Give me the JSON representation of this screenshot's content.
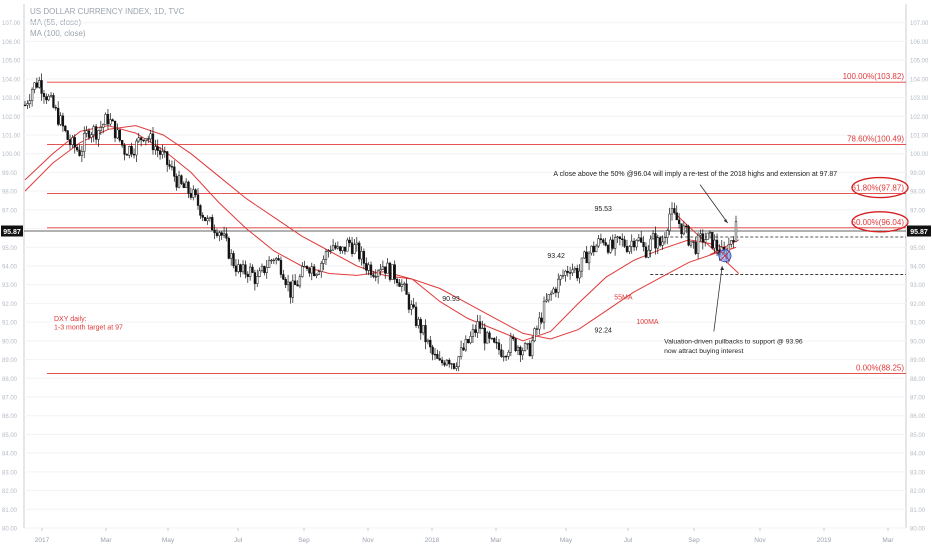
{
  "legend": {
    "symbol": "US DOLLAR CURRENCY INDEX, 1D, TVC",
    "ma1": "MA (55, close)",
    "ma2": "MA (100, close)"
  },
  "chart_data": {
    "type": "line",
    "subtype": "candlestick",
    "ylim": [
      80,
      108
    ],
    "y_ticks": [
      "107.00",
      "106.00",
      "105.00",
      "104.00",
      "103.00",
      "102.00",
      "101.00",
      "100.00",
      "99.00",
      "98.00",
      "97.00",
      "96.00",
      "95.00",
      "94.00",
      "93.00",
      "92.00",
      "91.00",
      "90.00",
      "89.00",
      "88.00",
      "87.00",
      "86.00",
      "85.00",
      "84.00",
      "83.00",
      "82.00",
      "81.00",
      "80.00"
    ],
    "x_ticks": [
      "2017",
      "Mar",
      "May",
      "Jul",
      "Sep",
      "Nov",
      "2018",
      "Mar",
      "May",
      "Jul",
      "Sep",
      "Nov",
      "2019",
      "Mar"
    ],
    "current_price": "95.87",
    "accent_color": "#e03a3a",
    "fib_levels": [
      {
        "label": "100.00%(103.82)",
        "value": 103.82,
        "circled": false
      },
      {
        "label": "78.60%(100.49)",
        "value": 100.49,
        "circled": false
      },
      {
        "label": "61.80%(97.87)",
        "value": 97.87,
        "circled": true
      },
      {
        "label": "50.00%(96.04)",
        "value": 96.04,
        "circled": true
      },
      {
        "label": "0.00%(88.25)",
        "value": 88.25,
        "circled": false
      }
    ],
    "support_dashed": [
      95.55,
      93.55
    ],
    "price_labels": [
      {
        "text": "90.93",
        "value": 90.93
      },
      {
        "text": "93.42",
        "value": 93.42
      },
      {
        "text": "95.53",
        "value": 95.53
      },
      {
        "text": "92.24",
        "value": 92.24
      }
    ],
    "ma_labels": {
      "ma55": "55MA",
      "ma100": "100MA"
    },
    "annotations": {
      "note_top": "A close above the 50% @96.04 will imply a re-test of the 2018 highs and extension at 97.87",
      "note_bottom_line1": "Valuation-driven pullbacks to support @ 93.96",
      "note_bottom_line2": "now attract buying interest",
      "dxy_line1": "DXY daily:",
      "dxy_line2": "1-3 month target at 97"
    },
    "price_path": [
      [
        0,
        102.6
      ],
      [
        0.5,
        103.5
      ],
      [
        1,
        103.9
      ],
      [
        1.8,
        102.8
      ],
      [
        2.5,
        101.8
      ],
      [
        3.2,
        100.6
      ],
      [
        4,
        100.1
      ],
      [
        4.6,
        101.3
      ],
      [
        5.2,
        101.2
      ],
      [
        6,
        101.9
      ],
      [
        6.6,
        101.1
      ],
      [
        7.2,
        100.2
      ],
      [
        8,
        100.4
      ],
      [
        8.6,
        101.1
      ],
      [
        9.2,
        100.6
      ],
      [
        10,
        99.8
      ],
      [
        10.6,
        99.1
      ],
      [
        11.2,
        98.3
      ],
      [
        12,
        97.9
      ],
      [
        12.6,
        97.2
      ],
      [
        13.2,
        96.3
      ],
      [
        14,
        96.0
      ],
      [
        14.5,
        95.2
      ],
      [
        15,
        94.3
      ],
      [
        15.6,
        93.6
      ],
      [
        16.2,
        93.8
      ],
      [
        16.8,
        93.2
      ],
      [
        17.4,
        94.0
      ],
      [
        18,
        94.5
      ],
      [
        18.6,
        93.9
      ],
      [
        19.2,
        92.6
      ],
      [
        19.8,
        93.2
      ],
      [
        20.4,
        94.1
      ],
      [
        21,
        93.8
      ],
      [
        21.6,
        94.4
      ],
      [
        22.2,
        95.2
      ],
      [
        22.8,
        94.6
      ],
      [
        23.4,
        95.3
      ],
      [
        24,
        94.8
      ],
      [
        24.6,
        94.1
      ],
      [
        25.2,
        93.8
      ],
      [
        25.8,
        94.1
      ],
      [
        26.4,
        93.7
      ],
      [
        27,
        93.4
      ],
      [
        27.6,
        92.3
      ],
      [
        28.2,
        91.2
      ],
      [
        28.8,
        90.4
      ],
      [
        29.4,
        89.3
      ],
      [
        30,
        88.7
      ],
      [
        30.5,
        89.2
      ],
      [
        31,
        88.8
      ],
      [
        31.6,
        89.4
      ],
      [
        32.2,
        90.1
      ],
      [
        32.8,
        90.9
      ],
      [
        33.4,
        90.0
      ],
      [
        34,
        89.6
      ],
      [
        34.6,
        89.5
      ],
      [
        35.2,
        89.9
      ],
      [
        35.8,
        89.7
      ],
      [
        36.4,
        89.4
      ],
      [
        37,
        90.6
      ],
      [
        37.6,
        91.9
      ],
      [
        38.2,
        92.7
      ],
      [
        38.8,
        93.4
      ],
      [
        39.4,
        94.0
      ],
      [
        40,
        93.6
      ],
      [
        40.6,
        94.6
      ],
      [
        41.2,
        95.0
      ],
      [
        41.8,
        95.5
      ],
      [
        42.4,
        94.9
      ],
      [
        43,
        95.3
      ],
      [
        43.6,
        95.1
      ],
      [
        44.2,
        95.6
      ],
      [
        44.8,
        94.8
      ],
      [
        45.4,
        95.4
      ],
      [
        46,
        95.1
      ],
      [
        46.6,
        96.8
      ],
      [
        47.2,
        96.4
      ],
      [
        47.8,
        95.7
      ],
      [
        48.4,
        95.0
      ],
      [
        49,
        95.5
      ],
      [
        49.6,
        95.4
      ],
      [
        50.2,
        94.8
      ],
      [
        50.6,
        94.4
      ],
      [
        51,
        95.4
      ],
      [
        51.4,
        96.0
      ]
    ],
    "ma55_path": [
      [
        0,
        98.6
      ],
      [
        2,
        100.0
      ],
      [
        4,
        101.2
      ],
      [
        6,
        101.5
      ],
      [
        8,
        101.1
      ],
      [
        10,
        100.2
      ],
      [
        12,
        99.0
      ],
      [
        14,
        97.4
      ],
      [
        16,
        96.0
      ],
      [
        18,
        94.8
      ],
      [
        20,
        94.0
      ],
      [
        22,
        93.6
      ],
      [
        24,
        93.5
      ],
      [
        26,
        93.7
      ],
      [
        28,
        93.3
      ],
      [
        30,
        92.1
      ],
      [
        32,
        91.2
      ],
      [
        34,
        90.6
      ],
      [
        36,
        90.0
      ],
      [
        38,
        90.5
      ],
      [
        40,
        92.0
      ],
      [
        42,
        93.4
      ],
      [
        44,
        94.3
      ],
      [
        46,
        94.9
      ],
      [
        48,
        95.4
      ],
      [
        49.5,
        95.2
      ],
      [
        51,
        94.9
      ],
      [
        51.4,
        95.0
      ]
    ],
    "ma100_path": [
      [
        0,
        98.0
      ],
      [
        2,
        99.5
      ],
      [
        4,
        100.6
      ],
      [
        6,
        101.3
      ],
      [
        8,
        101.5
      ],
      [
        10,
        101.0
      ],
      [
        12,
        100.0
      ],
      [
        14,
        98.8
      ],
      [
        16,
        97.6
      ],
      [
        18,
        96.6
      ],
      [
        20,
        95.6
      ],
      [
        22,
        94.8
      ],
      [
        24,
        94.0
      ],
      [
        26,
        93.5
      ],
      [
        28,
        93.3
      ],
      [
        30,
        92.8
      ],
      [
        32,
        92.0
      ],
      [
        34,
        91.2
      ],
      [
        36,
        90.4
      ],
      [
        38,
        90.1
      ],
      [
        40,
        90.6
      ],
      [
        42,
        91.6
      ],
      [
        44,
        92.6
      ],
      [
        46,
        93.4
      ],
      [
        48,
        94.2
      ],
      [
        50,
        94.7
      ],
      [
        51.4,
        95.0
      ]
    ],
    "downtrend_line": [
      [
        47,
        96.8
      ],
      [
        51.6,
        93.6
      ]
    ],
    "uptrend_line": [
      [
        49.5,
        94.6
      ],
      [
        51.6,
        95.4
      ]
    ]
  }
}
